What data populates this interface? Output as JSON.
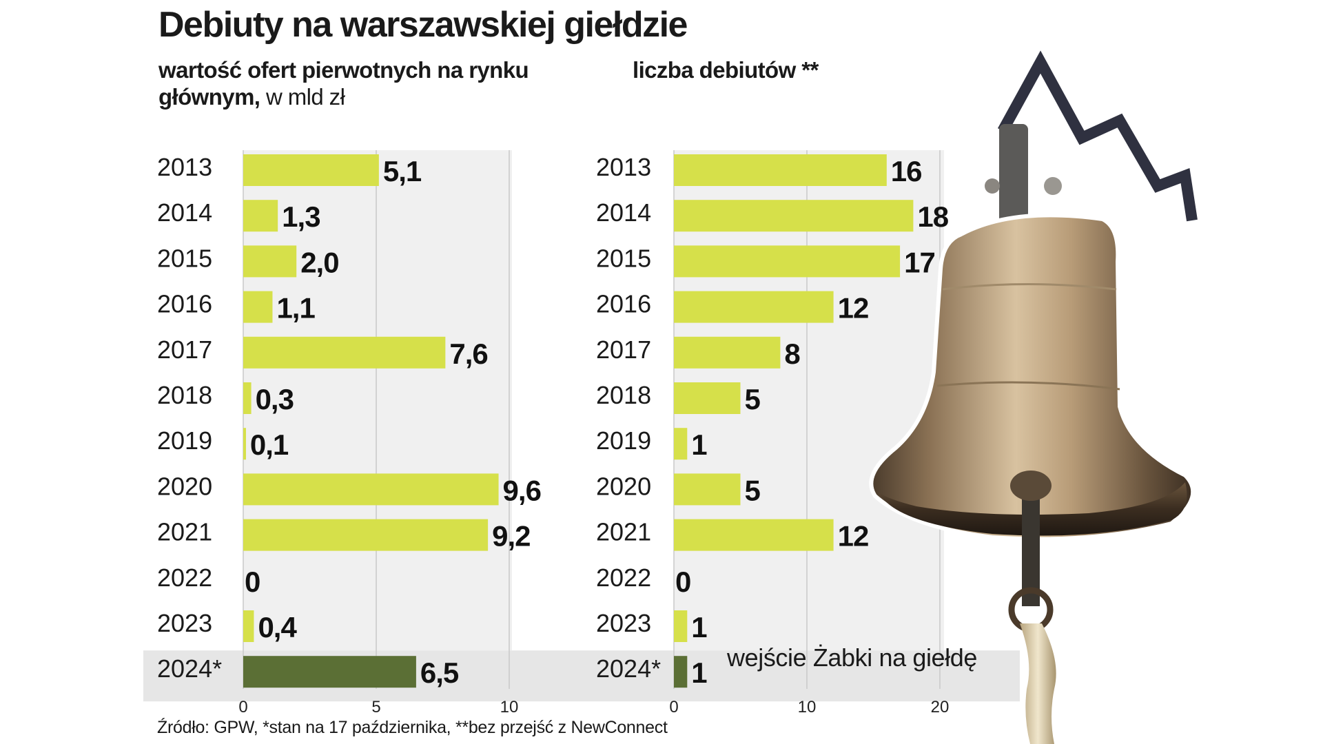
{
  "title": "Debiuty na warszawskiej giełdzie",
  "left_chart": {
    "subtitle_bold_line1": "wartość ofert pierwotnych na rynku",
    "subtitle_bold_line2": "głównym,",
    "subtitle_unit": " w mld zł"
  },
  "right_chart": {
    "subtitle": "liczba debiutów **"
  },
  "note": "wejście Żabki na giełdę",
  "source": "Źródło: GPW, *stan na 17 października, **bez przejść z NewConnect",
  "colors": {
    "bar": "#d6e04a",
    "highlight_bar": "#5b6f35",
    "panel": "#f0f0f0",
    "highlight_row": "#e6e6e6",
    "gridline": "#c8c8c8"
  },
  "chart_data": [
    {
      "type": "bar",
      "orientation": "horizontal",
      "categories": [
        "2013",
        "2014",
        "2015",
        "2016",
        "2017",
        "2018",
        "2019",
        "2020",
        "2021",
        "2022",
        "2023",
        "2024*"
      ],
      "values": [
        5.1,
        1.3,
        2.0,
        1.1,
        7.6,
        0.3,
        0.1,
        9.6,
        9.2,
        0,
        0.4,
        6.5
      ],
      "value_labels": [
        "5,1",
        "1,3",
        "2,0",
        "1,1",
        "7,6",
        "0,3",
        "0,1",
        "9,6",
        "9,2",
        "0",
        "0,4",
        "6,5"
      ],
      "xlim": [
        0,
        10
      ],
      "xticks": [
        0,
        5,
        10
      ],
      "highlight_category": "2024*",
      "grid": true
    },
    {
      "type": "bar",
      "orientation": "horizontal",
      "categories": [
        "2013",
        "2014",
        "2015",
        "2016",
        "2017",
        "2018",
        "2019",
        "2020",
        "2021",
        "2022",
        "2023",
        "2024*"
      ],
      "values": [
        16,
        18,
        17,
        12,
        8,
        5,
        1,
        5,
        12,
        0,
        1,
        1
      ],
      "value_labels": [
        "16",
        "18",
        "17",
        "12",
        "8",
        "5",
        "1",
        "5",
        "12",
        "0",
        "1",
        "1"
      ],
      "xlim": [
        0,
        20
      ],
      "xticks": [
        0,
        10,
        20
      ],
      "highlight_category": "2024*",
      "grid": true
    }
  ]
}
